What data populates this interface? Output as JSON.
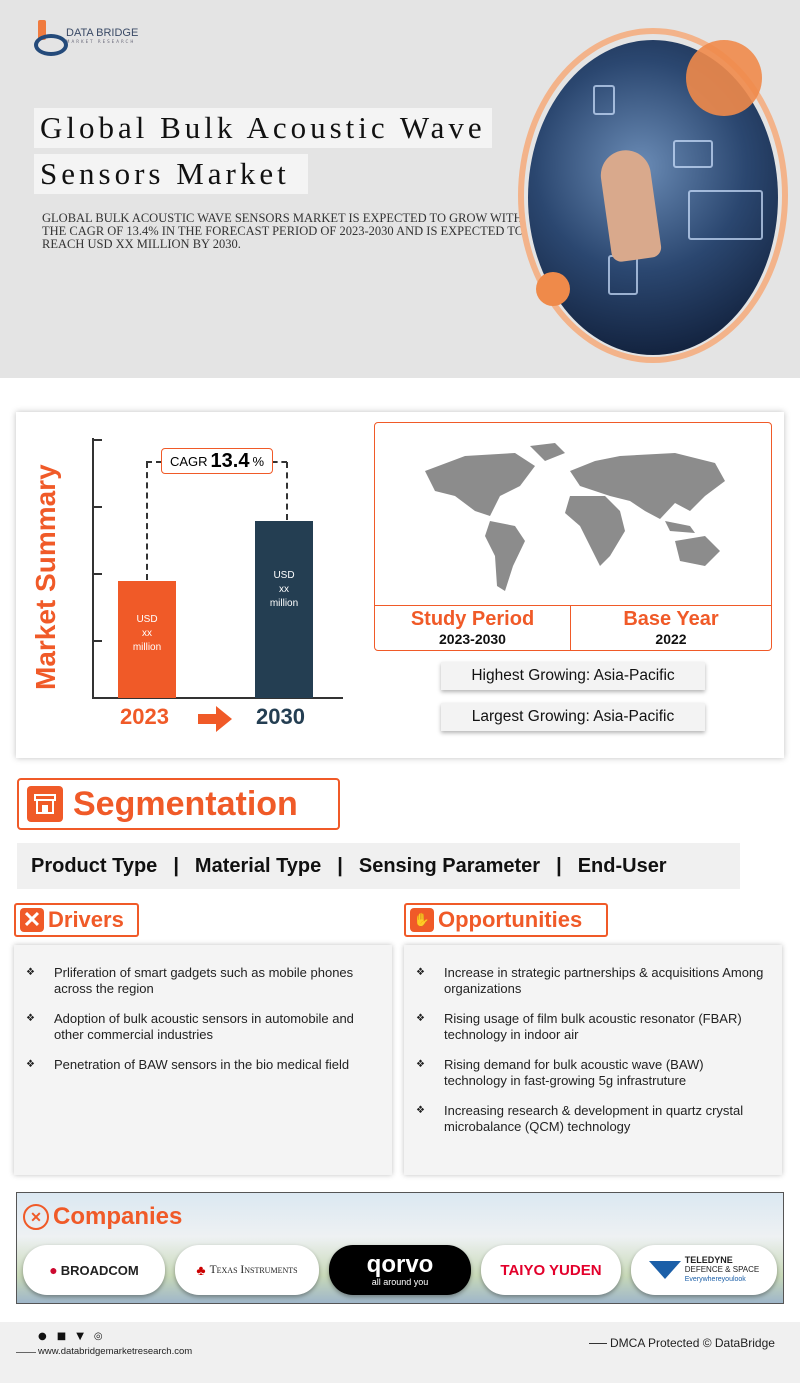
{
  "brand": {
    "name": "DATA BRIDGE",
    "tagline": "MARKET RESEARCH"
  },
  "hero": {
    "title_line1": "Global Bulk Acoustic Wave",
    "title_line2": "Sensors Market",
    "description": "Global bulk acoustic wave sensors market is expected to grow with the CAGR of 13.4% in the forecast period of 2023-2030 and is expected to reach USD xx million by 2030."
  },
  "summary": {
    "label": "Market Summary",
    "cagr_prefix": "CAGR",
    "cagr_value": "13.4",
    "cagr_unit": "%",
    "study_period_label": "Study Period",
    "study_period": "2023-2030",
    "base_year_label": "Base Year",
    "base_year": "2022",
    "highest_growing": "Highest Growing: Asia-Pacific",
    "largest_growing": "Largest Growing: Asia-Pacific"
  },
  "chart_data": {
    "type": "bar",
    "categories": [
      "2023",
      "2030"
    ],
    "bar_labels": [
      [
        "USD",
        "xx",
        "million"
      ],
      [
        "USD",
        "xx",
        "million"
      ]
    ],
    "colors": [
      "#f05a28",
      "#243e52"
    ],
    "annotation": "CAGR 13.4%"
  },
  "segmentation": {
    "title": "Segmentation",
    "items": [
      "Product Type",
      "Material Type",
      "Sensing Parameter",
      "End-User"
    ],
    "separator": "|"
  },
  "drivers": {
    "title": "Drivers",
    "items": [
      "Prliferation of smart gadgets such as mobile phones across the region",
      "Adoption of bulk acoustic sensors in automobile and other commercial industries",
      "Penetration of BAW sensors in the bio medical field"
    ]
  },
  "opportunities": {
    "title": "Opportunities",
    "items": [
      "Increase in strategic partnerships & acquisitions Among organizations",
      "Rising usage of film bulk acoustic resonator (FBAR) technology in indoor air",
      "Rising demand for bulk acoustic wave (BAW) technology in fast-growing 5g infrastruture",
      "Increasing research & development in quartz crystal microbalance (QCM) technology"
    ]
  },
  "companies": {
    "title": "Companies",
    "logos": [
      "BROADCOM",
      "Texas Instruments",
      "qorvo",
      "all around you",
      "TAIYO YUDEN",
      "TELEDYNE",
      "DEFENCE & SPACE",
      "Everywhereyoulook"
    ]
  },
  "footer": {
    "website": "www.databridgemarketresearch.com",
    "dmca": "DMCA Protected © DataBridge"
  },
  "colors": {
    "accent": "#f05a28",
    "navy": "#243e52"
  }
}
